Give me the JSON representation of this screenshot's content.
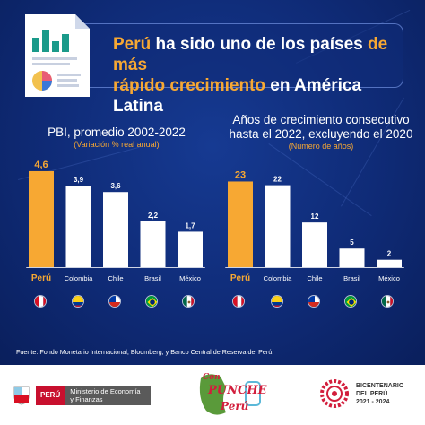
{
  "title": {
    "part1": "Perú",
    "part2": " ha sido uno de los países ",
    "part3": "de más",
    "part4": "rápido crecimiento",
    "part5": " en América Latina"
  },
  "colors": {
    "highlight": "#f7a833",
    "bar": "#ffffff",
    "background": "#0f2b77"
  },
  "chart_data": [
    {
      "type": "bar",
      "title": "PBI, promedio 2002-2022",
      "subtitle": "(Variación % real anual)",
      "categories": [
        "Perú",
        "Colombia",
        "Chile",
        "Brasil",
        "México"
      ],
      "labels": [
        "4,6",
        "3,9",
        "3,6",
        "2,2",
        "1,7"
      ],
      "values": [
        4.6,
        3.9,
        3.6,
        2.2,
        1.7
      ],
      "ylim": [
        0,
        5.5
      ]
    },
    {
      "type": "bar",
      "title": "Años de crecimiento consecutivo hasta el 2022, excluyendo el 2020",
      "title_line1": "Años de crecimiento consecutivo",
      "title_line2": "hasta el 2022, excluyendo el 2020",
      "subtitle": "(Número de años)",
      "categories": [
        "Perú",
        "Colombia",
        "Chile",
        "Brasil",
        "México"
      ],
      "labels": [
        "23",
        "22",
        "12",
        "5",
        "2"
      ],
      "values": [
        23,
        22,
        12,
        5,
        2
      ],
      "ylim": [
        0,
        26
      ]
    }
  ],
  "flags": [
    "peru-flag-icon",
    "colombia-flag-icon",
    "chile-flag-icon",
    "brasil-flag-icon",
    "mexico-flag-icon"
  ],
  "source": "Fuente: Fondo Monetario Internacional, Bloomberg, y Banco Central de Reserva del Perú.",
  "footer": {
    "ministry_country": "PERÚ",
    "ministry_name": "Ministerio de Economía y Finanzas",
    "punche_con": "Con",
    "punche_main": "PUNCHE",
    "punche_peru": "Perú",
    "bicent_line1": "BICENTENARIO",
    "bicent_line2": "DEL PERÚ",
    "bicent_line3": "2021 - 2024"
  }
}
